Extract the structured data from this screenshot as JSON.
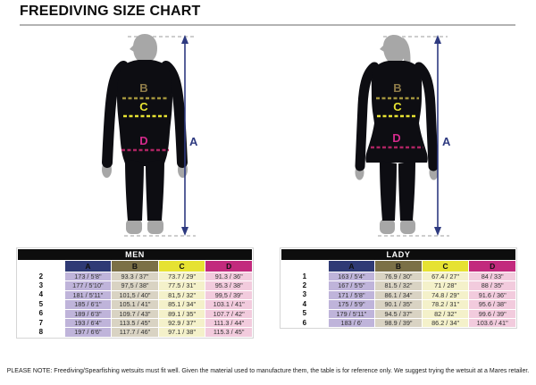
{
  "page": {
    "title": "FREEDIVING SIZE CHART",
    "note": "PLEASE NOTE: Freediving/Spearfishing wetsuits must fit well. Given the material used to manufacture them, the table is for reference only. We suggest trying the wetsuit at a Mares retailer."
  },
  "measure_labels": {
    "a": "A",
    "b": "B",
    "c": "C",
    "d": "D"
  },
  "colors": {
    "measure_a": "#2e3a80",
    "measure_b": "#8f7c49",
    "measure_c": "#e6e232",
    "measure_d": "#d42a8c",
    "header_a_bg": "#2f3a75",
    "header_b_bg": "#7b7047",
    "header_c_bg": "#e6e232",
    "header_d_bg": "#c22a7d",
    "cell_a_bg": "#bfb4da",
    "cell_b_bg": "#d9d3c3",
    "cell_c_bg": "#f4f1ca",
    "cell_d_bg": "#f2cbdd"
  },
  "tables": {
    "men": {
      "title": "MEN",
      "columns": [
        "A",
        "B",
        "C",
        "D"
      ],
      "rows": [
        {
          "size": "2",
          "values": [
            "173 / 5'8\"",
            "93.3 / 37\"",
            "73.7 / 29\"",
            "91.3 / 36\""
          ]
        },
        {
          "size": "3",
          "values": [
            "177 / 5'10\"",
            "97,5 / 38\"",
            "77.5 / 31\"",
            "95.3 / 38\""
          ]
        },
        {
          "size": "4",
          "values": [
            "181 / 5'11\"",
            "101,5 / 40\"",
            "81,5 / 32\"",
            "99,5 / 39\""
          ]
        },
        {
          "size": "5",
          "values": [
            "185 / 6'1\"",
            "105.1 / 41\"",
            "85.1 / 34\"",
            "103.1 / 41\""
          ]
        },
        {
          "size": "6",
          "values": [
            "189 / 6'3\"",
            "109.7 / 43\"",
            "89.1 / 35\"",
            "107.7 / 42\""
          ]
        },
        {
          "size": "7",
          "values": [
            "193 / 6'4\"",
            "113.5 / 45\"",
            "92.9 / 37\"",
            "111.3 / 44\""
          ]
        },
        {
          "size": "8",
          "values": [
            "197 / 6'6\"",
            "117.7 / 46\"",
            "97.1 / 38\"",
            "115.3 / 45\""
          ]
        }
      ]
    },
    "lady": {
      "title": "LADY",
      "columns": [
        "A",
        "B",
        "C",
        "D"
      ],
      "rows": [
        {
          "size": "1",
          "values": [
            "163 / 5'4\"",
            "76.9 / 30\"",
            "67.4 / 27\"",
            "84 / 33\""
          ]
        },
        {
          "size": "2",
          "values": [
            "167 / 5'5\"",
            "81.5 / 32\"",
            "71 / 28\"",
            "88 / 35\""
          ]
        },
        {
          "size": "3",
          "values": [
            "171 / 5'8\"",
            "86.1 / 34\"",
            "74.8 / 29\"",
            "91.6 / 36\""
          ]
        },
        {
          "size": "4",
          "values": [
            "175 / 5'9\"",
            "90.1 / 35\"",
            "78.2 / 31\"",
            "95.6 / 38\""
          ]
        },
        {
          "size": "5",
          "values": [
            "179 / 5'11\"",
            "94.5 / 37\"",
            "82 / 32\"",
            "99.6 / 39\""
          ]
        },
        {
          "size": "6",
          "values": [
            "183 / 6'",
            "98.9 / 39\"",
            "86.2 / 34\"",
            "103.6 / 41\""
          ]
        }
      ]
    }
  }
}
